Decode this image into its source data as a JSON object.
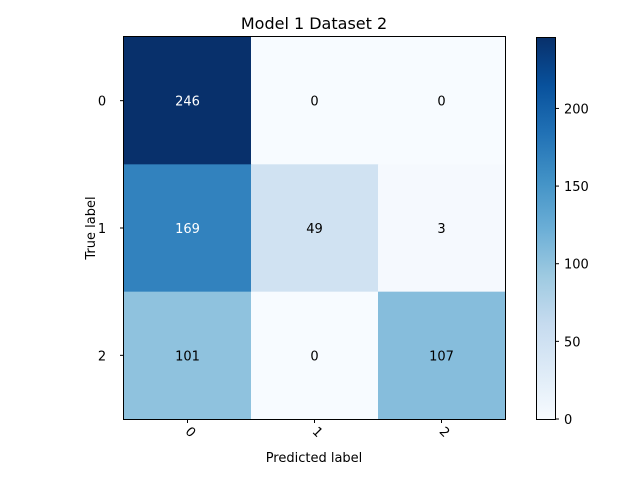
{
  "chart_data": {
    "type": "heatmap",
    "title": "Model 1 Dataset 2",
    "xlabel": "Predicted label",
    "ylabel": "True label",
    "x_categories": [
      "0",
      "1",
      "2"
    ],
    "y_categories": [
      "0",
      "1",
      "2"
    ],
    "values": [
      [
        246,
        0,
        0
      ],
      [
        169,
        49,
        3
      ],
      [
        101,
        0,
        107
      ]
    ],
    "colormap": "Blues",
    "colorbar": {
      "min": 0,
      "max": 246,
      "ticks": [
        0,
        50,
        100,
        150,
        200
      ]
    },
    "x_tick_rotation_deg": 45,
    "grid": false
  }
}
